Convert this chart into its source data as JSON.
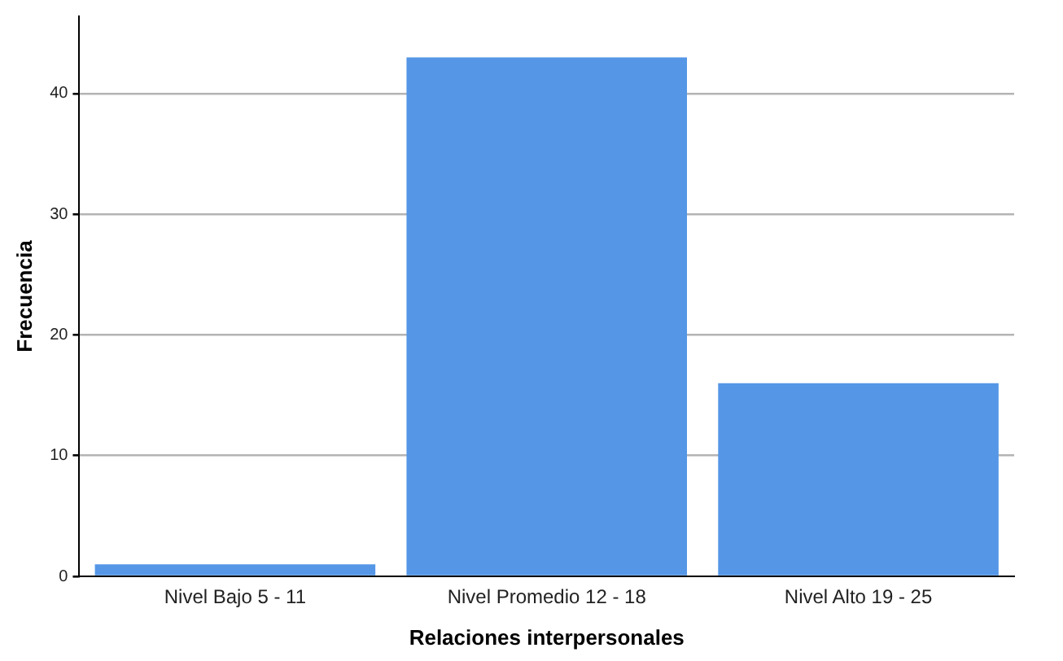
{
  "chart_data": {
    "type": "bar",
    "xlabel": "Relaciones interpersonales",
    "ylabel": "Frecuencia",
    "categories": [
      "Nivel Bajo 5 - 11",
      "Nivel Promedio 12 - 18",
      "Nivel Alto 19 - 25"
    ],
    "values": [
      1,
      43,
      16
    ],
    "color": "#5596e6",
    "ylim": [
      0,
      46.4
    ],
    "yticks": [
      0,
      10,
      20,
      30,
      40
    ],
    "grid": "y",
    "legend": false
  }
}
